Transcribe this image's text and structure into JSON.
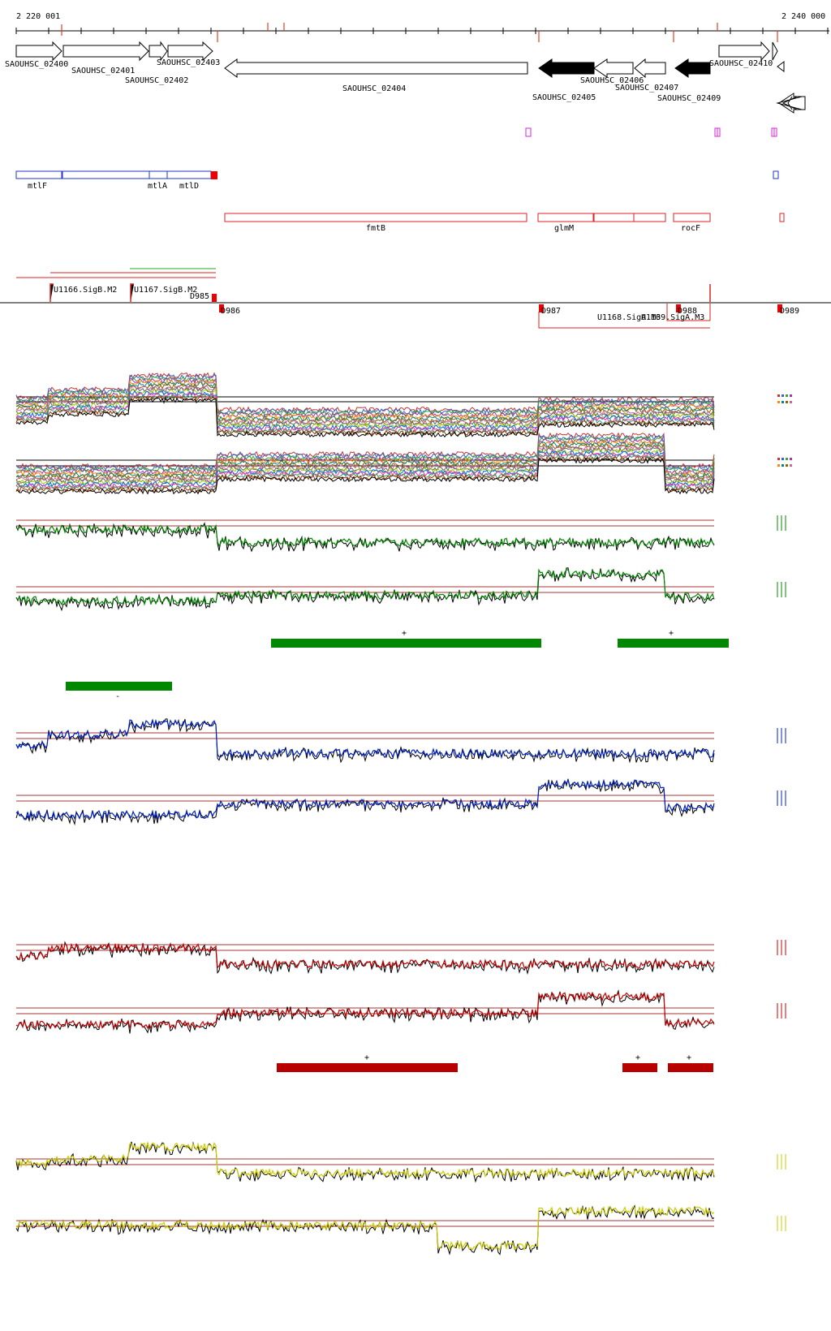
{
  "ruler": {
    "start_label": "2 220 001",
    "end_label": "2 240 000",
    "start": 2220001,
    "end": 2240000
  },
  "colors": {
    "strand_plus": "#000000",
    "strand_minus": "#000000",
    "green": "#008800",
    "blue": "#0022cc",
    "red": "#cc0000",
    "yellow": "#cccc00",
    "dark_red_bar": "#b80000",
    "guide": "#aa3333",
    "outline_red": "#dd2222",
    "outline_blue": "#2233cc",
    "magenta": "#dd22dd"
  },
  "genes": [
    {
      "id": "SAOUHSC_02400",
      "strand": "+",
      "filled": false
    },
    {
      "id": "SAOUHSC_02401",
      "strand": "+",
      "filled": false
    },
    {
      "id": "SAOUHSC_02402",
      "strand": "+",
      "filled": false
    },
    {
      "id": "SAOUHSC_02403",
      "strand": "+",
      "filled": false
    },
    {
      "id": "SAOUHSC_02404",
      "strand": "-",
      "filled": false
    },
    {
      "id": "SAOUHSC_02405",
      "strand": "-",
      "filled": true
    },
    {
      "id": "SAOUHSC_02406",
      "strand": "-",
      "filled": false
    },
    {
      "id": "SAOUHSC_02407",
      "strand": "-",
      "filled": false
    },
    {
      "id": "SAOUHSC_02409",
      "strand": "-",
      "filled": true
    },
    {
      "id": "SAOUHSC_02410",
      "strand": "+",
      "filled": false
    }
  ],
  "operons_top": [
    {
      "label": "mtlF"
    },
    {
      "label": "mtlA"
    },
    {
      "label": "mtlD"
    }
  ],
  "operons_bottom": [
    {
      "label": "fmtB"
    },
    {
      "label": "glmM"
    },
    {
      "label": "rocF"
    }
  ],
  "promoters": [
    {
      "label": "U1166.SigB.M2"
    },
    {
      "label": "U1167.SigB.M2"
    },
    {
      "label": "U1168.SigA.M3"
    },
    {
      "label": "U1169.SigA.M3"
    }
  ],
  "terminators": [
    {
      "label": "D985"
    },
    {
      "label": "D986"
    },
    {
      "label": "D987"
    },
    {
      "label": "D988"
    },
    {
      "label": "D989"
    }
  ],
  "segment_marks": {
    "plus": "+",
    "minus": "-"
  },
  "tracks": [
    {
      "name": "all-conditions-plus",
      "kind": "multi"
    },
    {
      "name": "all-conditions-minus",
      "kind": "multi"
    },
    {
      "name": "green-plus",
      "kind": "pair",
      "color": "#008800"
    },
    {
      "name": "green-minus",
      "kind": "pair",
      "color": "#008800"
    },
    {
      "name": "blue-plus",
      "kind": "pair",
      "color": "#0022cc"
    },
    {
      "name": "blue-minus",
      "kind": "pair",
      "color": "#0022cc"
    },
    {
      "name": "red-plus",
      "kind": "pair",
      "color": "#cc0000"
    },
    {
      "name": "red-minus",
      "kind": "pair",
      "color": "#cc0000"
    },
    {
      "name": "yellow-plus",
      "kind": "pair",
      "color": "#cccc00"
    },
    {
      "name": "yellow-minus",
      "kind": "pair",
      "color": "#cccc00"
    }
  ]
}
